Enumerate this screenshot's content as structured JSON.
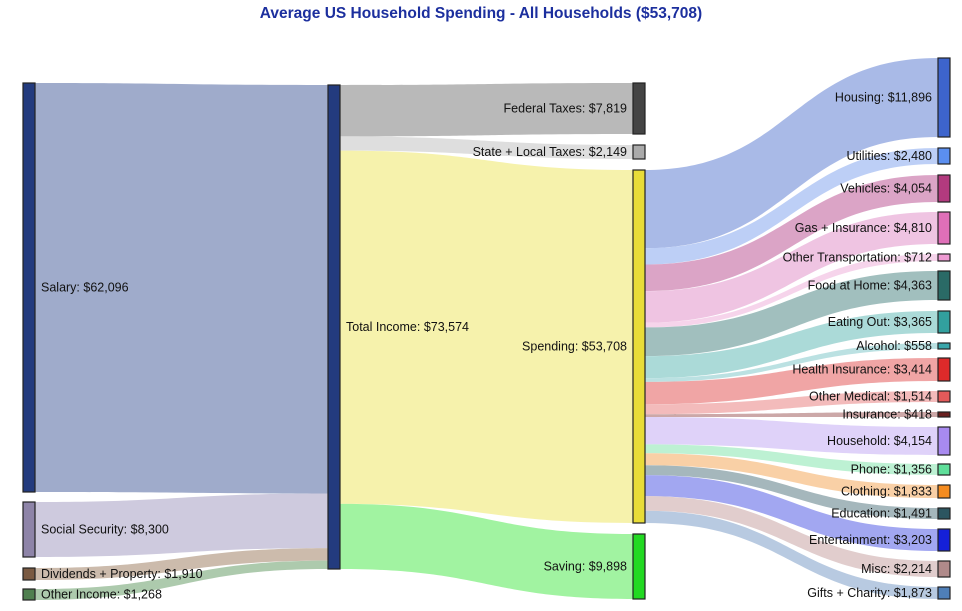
{
  "title": "Average US Household Spending - All Households ($53,708)",
  "colors": {
    "title": "#1c2f9e"
  },
  "chart_data": {
    "type": "sankey",
    "units": "USD per year",
    "nodes": [
      {
        "id": "salary",
        "label": "Salary: $62,096",
        "value": 62096,
        "color": "#233b7e"
      },
      {
        "id": "social_security",
        "label": "Social Security: $8,300",
        "value": 8300,
        "color": "#8e84a8"
      },
      {
        "id": "dividends",
        "label": "Dividends + Property: $1,910",
        "value": 1910,
        "color": "#7a5a42"
      },
      {
        "id": "other_income",
        "label": "Other Income: $1,268",
        "value": 1268,
        "color": "#4f7f4f"
      },
      {
        "id": "total_income",
        "label": "Total Income: $73,574",
        "value": 73574,
        "color": "#233b7e"
      },
      {
        "id": "federal_taxes",
        "label": "Federal Taxes: $7,819",
        "value": 7819,
        "color": "#444444"
      },
      {
        "id": "state_local_taxes",
        "label": "State + Local Taxes: $2,149",
        "value": 2149,
        "color": "#aaaaaa"
      },
      {
        "id": "spending",
        "label": "Spending: $53,708",
        "value": 53708,
        "color": "#e8dc38"
      },
      {
        "id": "saving",
        "label": "Saving: $9,898",
        "value": 9898,
        "color": "#22d922"
      },
      {
        "id": "housing",
        "label": "Housing: $11,896",
        "value": 11896,
        "color": "#3d64cc"
      },
      {
        "id": "utilities",
        "label": "Utilities: $2,480",
        "value": 2480,
        "color": "#5b8ff0"
      },
      {
        "id": "vehicles",
        "label": "Vehicles: $4,054",
        "value": 4054,
        "color": "#b23a7e"
      },
      {
        "id": "gas_insurance",
        "label": "Gas + Insurance: $4,810",
        "value": 4810,
        "color": "#df6fb8"
      },
      {
        "id": "other_transportation",
        "label": "Other Transportation: $712",
        "value": 712,
        "color": "#ee9ad2"
      },
      {
        "id": "food_home",
        "label": "Food at Home: $4,363",
        "value": 4363,
        "color": "#2a6a66"
      },
      {
        "id": "eating_out",
        "label": "Eating Out: $3,365",
        "value": 3365,
        "color": "#32a09e"
      },
      {
        "id": "alcohol",
        "label": "Alcohol: $558",
        "value": 558,
        "color": "#3aa6aa"
      },
      {
        "id": "health_insurance",
        "label": "Health Insurance: $3,414",
        "value": 3414,
        "color": "#dd2a2a"
      },
      {
        "id": "other_medical",
        "label": "Other Medical: $1,514",
        "value": 1514,
        "color": "#e35a5a"
      },
      {
        "id": "insurance",
        "label": "Insurance: $418",
        "value": 418,
        "color": "#6a2020"
      },
      {
        "id": "household",
        "label": "Household: $4,154",
        "value": 4154,
        "color": "#a88af0"
      },
      {
        "id": "phone",
        "label": "Phone: $1,356",
        "value": 1356,
        "color": "#5fdf9a"
      },
      {
        "id": "clothing",
        "label": "Clothing: $1,833",
        "value": 1833,
        "color": "#f58c20"
      },
      {
        "id": "education",
        "label": "Education: $1,491",
        "value": 1491,
        "color": "#2c5560"
      },
      {
        "id": "entertainment",
        "label": "Entertainment: $3,203",
        "value": 3203,
        "color": "#1520d8"
      },
      {
        "id": "misc",
        "label": "Misc: $2,214",
        "value": 2214,
        "color": "#b08a8a"
      },
      {
        "id": "gifts_charity",
        "label": "Gifts + Charity: $1,873",
        "value": 1873,
        "color": "#4f7fb8"
      }
    ],
    "links": [
      {
        "source": "salary",
        "target": "total_income",
        "value": 62096,
        "color": "#9aa7c8"
      },
      {
        "source": "social_security",
        "target": "total_income",
        "value": 8300,
        "color": "#cbc7dc"
      },
      {
        "source": "dividends",
        "target": "total_income",
        "value": 1910,
        "color": "#c9b7a8"
      },
      {
        "source": "other_income",
        "target": "total_income",
        "value": 1268,
        "color": "#a9c7a9"
      },
      {
        "source": "total_income",
        "target": "federal_taxes",
        "value": 7819,
        "color": "#b5b5b5"
      },
      {
        "source": "total_income",
        "target": "state_local_taxes",
        "value": 2149,
        "color": "#dcdcdc"
      },
      {
        "source": "total_income",
        "target": "spending",
        "value": 53708,
        "color": "#f5f1a8"
      },
      {
        "source": "total_income",
        "target": "saving",
        "value": 9898,
        "color": "#9cf29c"
      },
      {
        "source": "spending",
        "target": "housing",
        "value": 11896,
        "color": "#a4b6e6"
      },
      {
        "source": "spending",
        "target": "utilities",
        "value": 2480,
        "color": "#b9ccf6"
      },
      {
        "source": "spending",
        "target": "vehicles",
        "value": 4054,
        "color": "#d99fc3"
      },
      {
        "source": "spending",
        "target": "gas_insurance",
        "value": 4810,
        "color": "#eec1e0"
      },
      {
        "source": "spending",
        "target": "other_transportation",
        "value": 712,
        "color": "#f5d2ea"
      },
      {
        "source": "spending",
        "target": "food_home",
        "value": 4363,
        "color": "#9cbcba"
      },
      {
        "source": "spending",
        "target": "eating_out",
        "value": 3365,
        "color": "#a6d8d6"
      },
      {
        "source": "spending",
        "target": "alcohol",
        "value": 558,
        "color": "#b7dfe0"
      },
      {
        "source": "spending",
        "target": "health_insurance",
        "value": 3414,
        "color": "#efa0a0"
      },
      {
        "source": "spending",
        "target": "other_medical",
        "value": 1514,
        "color": "#f2b7b7"
      },
      {
        "source": "spending",
        "target": "insurance",
        "value": 418,
        "color": "#c9a3a3"
      },
      {
        "source": "spending",
        "target": "household",
        "value": 4154,
        "color": "#ddd0f9"
      },
      {
        "source": "spending",
        "target": "phone",
        "value": 1356,
        "color": "#b9f0d1"
      },
      {
        "source": "spending",
        "target": "clothing",
        "value": 1833,
        "color": "#f9cea1"
      },
      {
        "source": "spending",
        "target": "education",
        "value": 1491,
        "color": "#a0b3b8"
      },
      {
        "source": "spending",
        "target": "entertainment",
        "value": 3203,
        "color": "#9da2f0"
      },
      {
        "source": "spending",
        "target": "misc",
        "value": 2214,
        "color": "#dfcaca"
      },
      {
        "source": "spending",
        "target": "gifts_charity",
        "value": 1873,
        "color": "#b4c7df"
      }
    ]
  }
}
